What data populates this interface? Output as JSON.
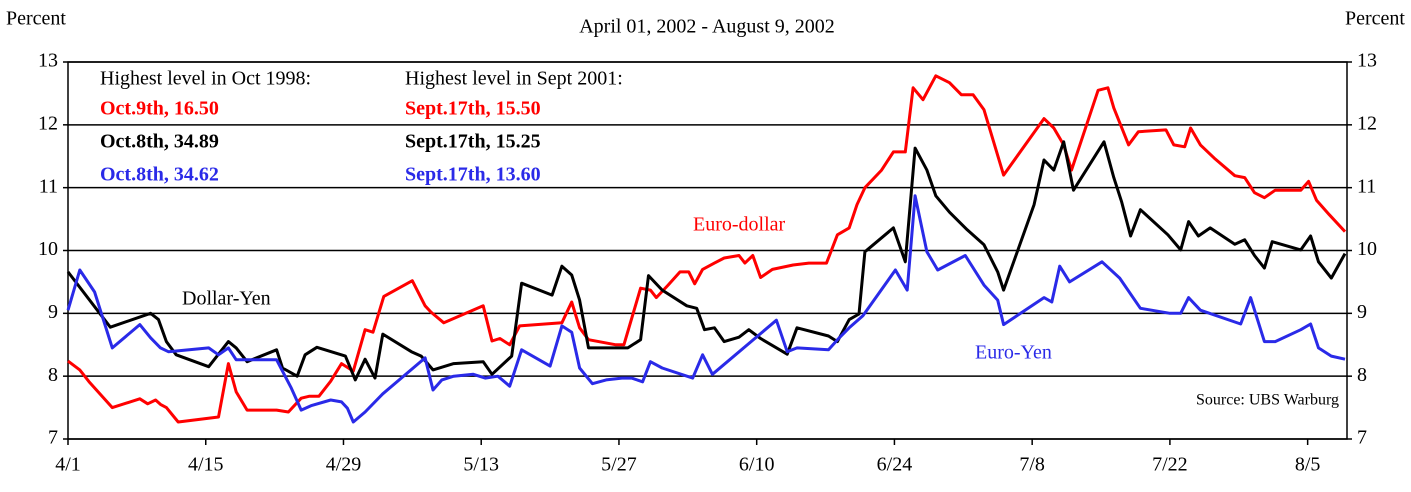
{
  "chart_data": {
    "type": "line",
    "title": "April 01, 2002 - August 9, 2002",
    "ylabel": "Percent",
    "y2label": "Percent",
    "source": "Source: UBS Warburg",
    "xlim": [
      0,
      130
    ],
    "xticks": [
      {
        "value": 0,
        "label": "4/1"
      },
      {
        "value": 14,
        "label": "4/15"
      },
      {
        "value": 28,
        "label": "4/29"
      },
      {
        "value": 42,
        "label": "5/13"
      },
      {
        "value": 56,
        "label": "5/27"
      },
      {
        "value": 70,
        "label": "6/10"
      },
      {
        "value": 84,
        "label": "6/24"
      },
      {
        "value": 98,
        "label": "7/8"
      },
      {
        "value": 112,
        "label": "7/22"
      },
      {
        "value": 126,
        "label": "8/5"
      }
    ],
    "ylim": [
      7,
      13
    ],
    "yticks": [
      7,
      8,
      9,
      10,
      11,
      12,
      13
    ],
    "y2lim": [
      7,
      13
    ],
    "y2ticks": [
      7,
      8,
      9,
      10,
      11,
      12,
      13
    ],
    "grid": true,
    "notes": [
      [
        "Highest level in Oct 1998:",
        "Oct.9th, 16.50",
        "Oct.8th, 34.89",
        "Oct.8th, 34.62"
      ],
      [
        "Highest level in Sept 2001:",
        "Sept.17th, 15.50",
        "Sept.17th, 15.25",
        "Sept.17th, 13.60"
      ]
    ],
    "note_colors": [
      "#000000",
      "#ff0000",
      "#000000",
      "#2a2ae8"
    ],
    "series": [
      {
        "name": "Euro-dollar",
        "color": "#ff0000",
        "x": [
          0,
          1.2,
          2.2,
          4.5,
          7.3,
          8.1,
          8.9,
          9.4,
          10,
          11.2,
          15.3,
          16.3,
          17.1,
          18.2,
          21.2,
          22.4,
          23.7,
          24.5,
          25.5,
          26.7,
          27.8,
          29,
          30.2,
          31,
          32.1,
          35,
          36.3,
          36.9,
          38.2,
          42.2,
          43.1,
          43.9,
          44.9,
          45.9,
          50.2,
          51.2,
          52,
          52.9,
          55.7,
          56.5,
          58.2,
          59.2,
          59.8,
          61,
          62.2,
          63.1,
          63.7,
          64.5,
          65.7,
          66.7,
          68.2,
          68.8,
          69.6,
          70.4,
          71.6,
          73.7,
          75.3,
          77.1,
          78.2,
          79.4,
          80.2,
          81,
          82.7,
          83.9,
          85.1,
          85.9,
          86.9,
          88.2,
          89.6,
          90.8,
          92,
          93.1,
          95.1,
          99.2,
          100.2,
          101.2,
          102,
          104.7,
          105.7,
          106.3,
          107.8,
          108.8,
          111.6,
          112.4,
          113.5,
          114.1,
          115.1,
          116.5,
          118.6,
          119.6,
          120.6,
          121.6,
          122.7,
          125.3,
          126.1,
          126.9,
          128.2,
          129.8
        ],
        "values": [
          8.24,
          8.1,
          7.9,
          7.5,
          7.64,
          7.56,
          7.62,
          7.55,
          7.5,
          7.27,
          7.35,
          8.2,
          7.75,
          7.46,
          7.46,
          7.43,
          7.65,
          7.68,
          7.68,
          7.92,
          8.2,
          8.08,
          8.74,
          8.7,
          9.27,
          9.52,
          9.12,
          9.02,
          8.85,
          9.12,
          8.56,
          8.6,
          8.5,
          8.8,
          8.85,
          9.18,
          8.77,
          8.58,
          8.5,
          8.5,
          9.4,
          9.37,
          9.25,
          9.45,
          9.66,
          9.66,
          9.47,
          9.7,
          9.8,
          9.88,
          9.92,
          9.8,
          9.92,
          9.57,
          9.7,
          9.77,
          9.8,
          9.8,
          10.25,
          10.36,
          10.73,
          11,
          11.28,
          11.57,
          11.57,
          12.59,
          12.4,
          12.78,
          12.67,
          12.48,
          12.48,
          12.24,
          11.2,
          12.1,
          11.95,
          11.68,
          11.28,
          12.55,
          12.59,
          12.27,
          11.68,
          11.89,
          11.92,
          11.68,
          11.65,
          11.95,
          11.68,
          11.47,
          11.19,
          11.16,
          10.92,
          10.84,
          10.96,
          10.96,
          11.1,
          10.8,
          10.57,
          10.3
        ]
      },
      {
        "name": "Dollar-Yen",
        "color": "#000000",
        "x": [
          0,
          4.3,
          8.4,
          9.2,
          10,
          11,
          14.3,
          16.3,
          17.1,
          18.2,
          21.2,
          21.8,
          23.3,
          24.1,
          25.3,
          28.2,
          29.2,
          30.2,
          31.2,
          32,
          34.9,
          35.9,
          37.1,
          39.2,
          42.2,
          43.1,
          45.1,
          46.1,
          49.2,
          50.2,
          51.2,
          52,
          52.9,
          56.9,
          58.2,
          59,
          60.4,
          62.9,
          63.9,
          64.7,
          65.7,
          66.7,
          68.2,
          69.2,
          70.4,
          73.1,
          74.1,
          77.3,
          78.2,
          79.4,
          80.4,
          81,
          83.9,
          85.1,
          86.1,
          87.3,
          88.2,
          89.6,
          91.4,
          93.1,
          94.5,
          95.1,
          98.2,
          99.2,
          100.2,
          101.2,
          102.2,
          105.3,
          106.3,
          107.1,
          108,
          109,
          111.8,
          113.1,
          113.9,
          114.9,
          116.1,
          118.6,
          119.6,
          120.6,
          121.6,
          122.4,
          125.3,
          126.3,
          127.1,
          128.4,
          129.8
        ],
        "values": [
          9.66,
          8.78,
          9.0,
          8.9,
          8.55,
          8.34,
          8.15,
          8.55,
          8.45,
          8.23,
          8.42,
          8.13,
          8.0,
          8.34,
          8.46,
          8.32,
          7.94,
          8.27,
          7.97,
          8.67,
          8.39,
          8.32,
          8.1,
          8.2,
          8.23,
          8.03,
          8.32,
          9.48,
          9.29,
          9.75,
          9.61,
          9.21,
          8.45,
          8.45,
          8.58,
          9.6,
          9.37,
          9.12,
          9.08,
          8.74,
          8.77,
          8.55,
          8.62,
          8.74,
          8.6,
          8.35,
          8.77,
          8.64,
          8.55,
          8.9,
          8.99,
          9.98,
          10.36,
          9.82,
          11.63,
          11.28,
          10.87,
          10.61,
          10.33,
          10.09,
          9.66,
          9.37,
          10.73,
          11.44,
          11.28,
          11.73,
          10.96,
          11.73,
          11.16,
          10.77,
          10.23,
          10.65,
          10.25,
          10.01,
          10.46,
          10.23,
          10.36,
          10.1,
          10.17,
          9.92,
          9.72,
          10.14,
          10.01,
          10.23,
          9.82,
          9.56,
          9.95
        ]
      },
      {
        "name": "Euro-Yen",
        "color": "#2a2ae8",
        "x": [
          0,
          1.2,
          2.7,
          4.5,
          7.3,
          8.4,
          9.4,
          10.2,
          14.3,
          15.3,
          16.3,
          17.1,
          21.2,
          22.7,
          23.7,
          24.7,
          26.7,
          27.8,
          28.4,
          29,
          30.2,
          32,
          36.3,
          37.1,
          38,
          39.2,
          41.2,
          42.4,
          43.7,
          44.9,
          46.1,
          49,
          50.2,
          51.2,
          52,
          53.3,
          54.7,
          56.3,
          57.3,
          58.4,
          59.2,
          60.4,
          63.5,
          64.5,
          65.5,
          72,
          73.1,
          74.1,
          77.3,
          78.4,
          79.4,
          80.8,
          84.1,
          85.3,
          86.1,
          87.3,
          88.4,
          91.2,
          93.1,
          94.5,
          95.1,
          99.2,
          100,
          100.8,
          101.8,
          105.1,
          106.9,
          109,
          112,
          113.1,
          113.9,
          115.1,
          119.2,
          120.2,
          121.6,
          122.7,
          125.3,
          126.3,
          127.1,
          128.4,
          129.8
        ],
        "values": [
          9.05,
          9.69,
          9.34,
          8.45,
          8.82,
          8.61,
          8.45,
          8.39,
          8.45,
          8.34,
          8.45,
          8.26,
          8.26,
          7.81,
          7.46,
          7.53,
          7.62,
          7.59,
          7.49,
          7.27,
          7.43,
          7.72,
          8.29,
          7.78,
          7.94,
          8.0,
          8.03,
          7.97,
          8.0,
          7.84,
          8.42,
          8.16,
          8.8,
          8.7,
          8.13,
          7.88,
          7.94,
          7.97,
          7.97,
          7.91,
          8.23,
          8.13,
          7.97,
          8.34,
          8.03,
          8.89,
          8.39,
          8.45,
          8.42,
          8.61,
          8.77,
          8.96,
          9.69,
          9.37,
          10.87,
          9.98,
          9.69,
          9.92,
          9.45,
          9.21,
          8.82,
          9.25,
          9.18,
          9.75,
          9.5,
          9.82,
          9.56,
          9.08,
          9.0,
          9.0,
          9.25,
          9.05,
          8.83,
          9.25,
          8.55,
          8.55,
          8.74,
          8.83,
          8.45,
          8.32,
          8.27
        ]
      }
    ]
  }
}
